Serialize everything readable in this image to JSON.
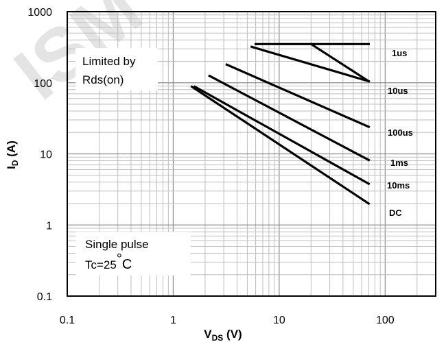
{
  "chart_data": {
    "type": "line",
    "x_scale": "log",
    "y_scale": "log",
    "xlim": [
      0.1,
      300
    ],
    "ylim": [
      0.1,
      1000
    ],
    "grid": true,
    "xlabel": {
      "main": "V",
      "sub": "DS",
      "unit": " (V)"
    },
    "ylabel": {
      "main": "I",
      "sub": "D",
      "unit": " (A)"
    },
    "x_ticks": [
      {
        "v": 0.1,
        "label": "0.1"
      },
      {
        "v": 1,
        "label": "1"
      },
      {
        "v": 10,
        "label": "10"
      },
      {
        "v": 100,
        "label": "100"
      }
    ],
    "y_ticks": [
      {
        "v": 0.1,
        "label": "0.1"
      },
      {
        "v": 1,
        "label": "1"
      },
      {
        "v": 10,
        "label": "10"
      },
      {
        "v": 100,
        "label": "100"
      },
      {
        "v": 1000,
        "label": "1000"
      }
    ],
    "series": [
      {
        "name": "1us",
        "points": [
          [
            6.0,
            350
          ],
          [
            70,
            350
          ]
        ]
      },
      {
        "name": "10us",
        "points": [
          [
            5.5,
            320
          ],
          [
            70,
            105
          ]
        ]
      },
      {
        "name": "100us",
        "points": [
          [
            3.2,
            180
          ],
          [
            70,
            24
          ]
        ]
      },
      {
        "name": "1ms",
        "points": [
          [
            2.2,
            125
          ],
          [
            70,
            8.2
          ]
        ]
      },
      {
        "name": "10ms",
        "points": [
          [
            1.6,
            88
          ],
          [
            70,
            3.8
          ]
        ]
      },
      {
        "name": "DC",
        "points": [
          [
            1.5,
            88
          ],
          [
            70,
            2.0
          ]
        ]
      }
    ],
    "corner_line": {
      "points": [
        [
          20,
          350
        ],
        [
          70,
          105
        ]
      ]
    },
    "annotations": {
      "limited_line1": "Limited by",
      "limited_line2": "Rds(on)",
      "pulse_line1": "Single pulse",
      "pulse_line2": "Tc=25",
      "pulse_degree": "°",
      "pulse_unit": "C"
    },
    "watermark": "ISM"
  }
}
